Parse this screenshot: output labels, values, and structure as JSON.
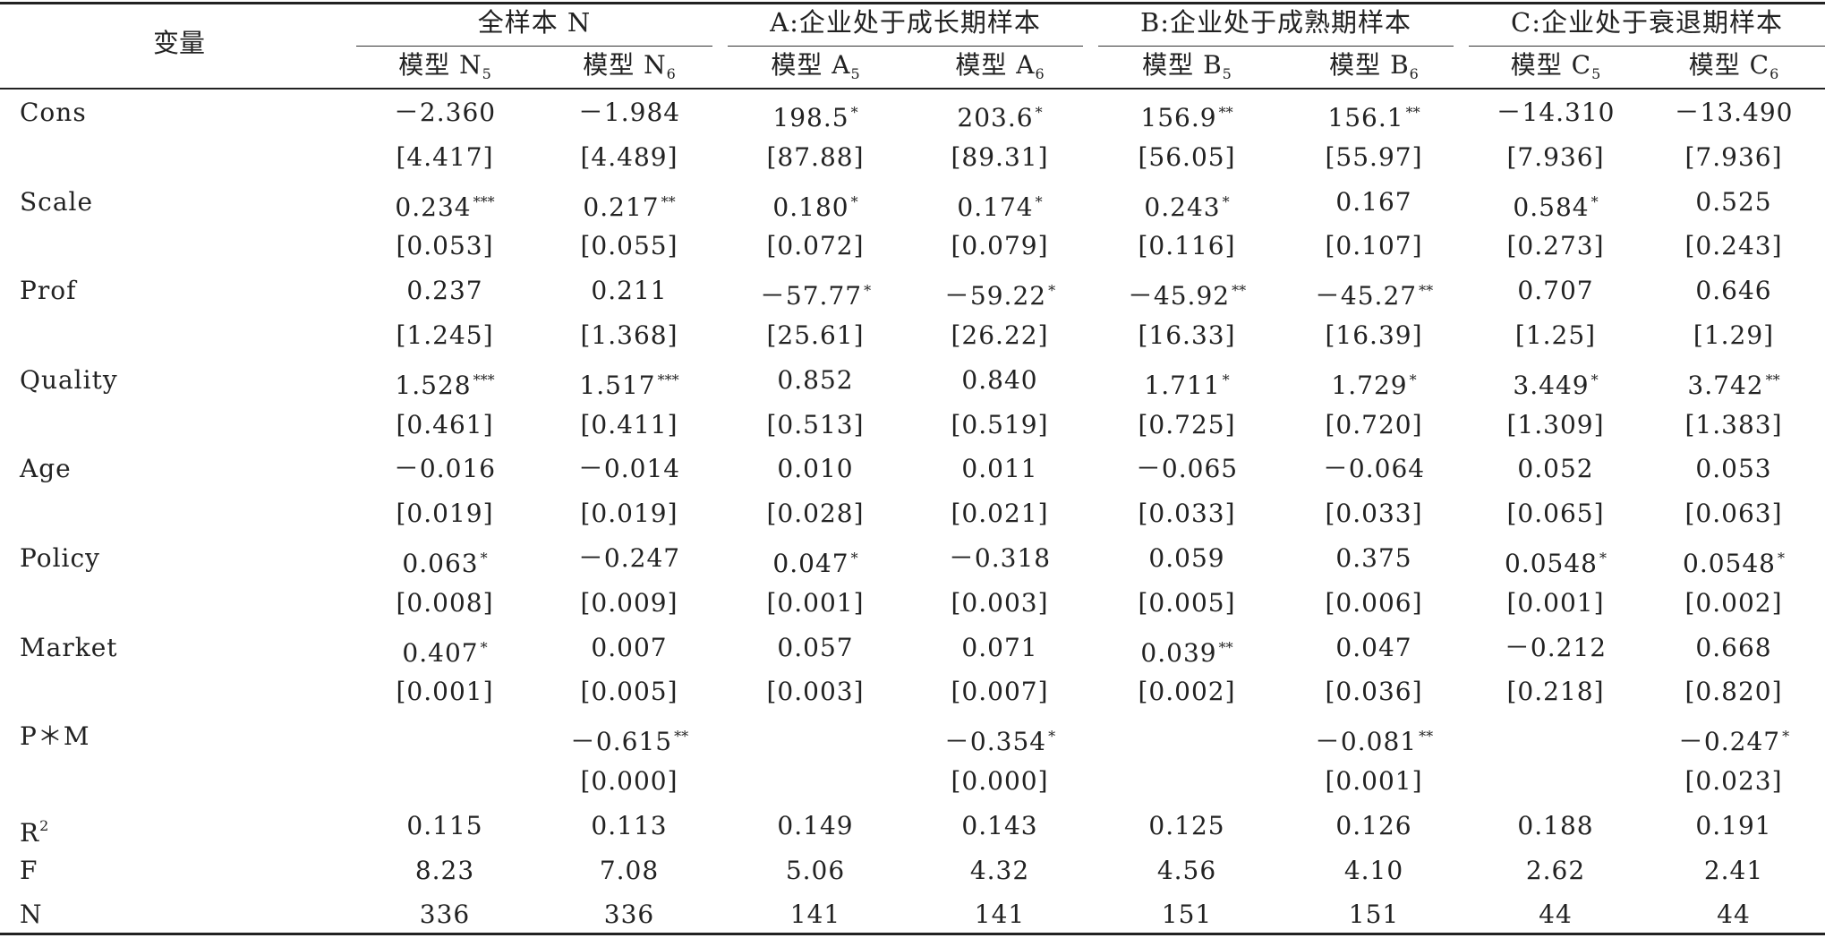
{
  "table": {
    "var_header": "变量",
    "groups": [
      {
        "label": "全样本 N"
      },
      {
        "label": "A:企业处于成长期样本"
      },
      {
        "label": "B:企业处于成熟期样本"
      },
      {
        "label": "C:企业处于衰退期样本"
      }
    ],
    "models": [
      {
        "base": "模型 N",
        "sub": "5"
      },
      {
        "base": "模型 N",
        "sub": "6"
      },
      {
        "base": "模型 A",
        "sub": "5"
      },
      {
        "base": "模型 A",
        "sub": "6"
      },
      {
        "base": "模型 B",
        "sub": "5"
      },
      {
        "base": "模型 B",
        "sub": "6"
      },
      {
        "base": "模型 C",
        "sub": "5"
      },
      {
        "base": "模型 C",
        "sub": "6"
      }
    ],
    "rows": [
      {
        "name": "Cons",
        "sup": "",
        "coef": [
          [
            "－2.360",
            ""
          ],
          [
            "－1.984",
            ""
          ],
          [
            "198.5",
            "*"
          ],
          [
            "203.6",
            "*"
          ],
          [
            "156.9",
            "**"
          ],
          [
            "156.1",
            "**"
          ],
          [
            "－14.310",
            ""
          ],
          [
            "－13.490",
            ""
          ]
        ],
        "se": [
          "[4.417]",
          "[4.489]",
          "[87.88]",
          "[89.31]",
          "[56.05]",
          "[55.97]",
          "[7.936]",
          "[7.936]"
        ]
      },
      {
        "name": "Scale",
        "sup": "",
        "coef": [
          [
            "0.234",
            "***"
          ],
          [
            "0.217",
            "**"
          ],
          [
            "0.180",
            "*"
          ],
          [
            "0.174",
            "*"
          ],
          [
            "0.243",
            "*"
          ],
          [
            "0.167",
            ""
          ],
          [
            "0.584",
            "*"
          ],
          [
            "0.525",
            ""
          ]
        ],
        "se": [
          "[0.053]",
          "[0.055]",
          "[0.072]",
          "[0.079]",
          "[0.116]",
          "[0.107]",
          "[0.273]",
          "[0.243]"
        ]
      },
      {
        "name": "Prof",
        "sup": "",
        "coef": [
          [
            "0.237",
            ""
          ],
          [
            "0.211",
            ""
          ],
          [
            "－57.77",
            "*"
          ],
          [
            "－59.22",
            "*"
          ],
          [
            "－45.92",
            "**"
          ],
          [
            "－45.27",
            "**"
          ],
          [
            "0.707",
            ""
          ],
          [
            "0.646",
            ""
          ]
        ],
        "se": [
          "[1.245]",
          "[1.368]",
          "[25.61]",
          "[26.22]",
          "[16.33]",
          "[16.39]",
          "[1.25]",
          "[1.29]"
        ]
      },
      {
        "name": "Quality",
        "sup": "",
        "coef": [
          [
            "1.528",
            "***"
          ],
          [
            "1.517",
            "***"
          ],
          [
            "0.852",
            ""
          ],
          [
            "0.840",
            ""
          ],
          [
            "1.711",
            "*"
          ],
          [
            "1.729",
            "*"
          ],
          [
            "3.449",
            "*"
          ],
          [
            "3.742",
            "**"
          ]
        ],
        "se": [
          "[0.461]",
          "[0.411]",
          "[0.513]",
          "[0.519]",
          "[0.725]",
          "[0.720]",
          "[1.309]",
          "[1.383]"
        ]
      },
      {
        "name": "Age",
        "sup": "",
        "coef": [
          [
            "－0.016",
            ""
          ],
          [
            "－0.014",
            ""
          ],
          [
            "0.010",
            ""
          ],
          [
            "0.011",
            ""
          ],
          [
            "－0.065",
            ""
          ],
          [
            "－0.064",
            ""
          ],
          [
            "0.052",
            ""
          ],
          [
            "0.053",
            ""
          ]
        ],
        "se": [
          "[0.019]",
          "[0.019]",
          "[0.028]",
          "[0.021]",
          "[0.033]",
          "[0.033]",
          "[0.065]",
          "[0.063]"
        ]
      },
      {
        "name": "Policy",
        "sup": "",
        "coef": [
          [
            "0.063",
            "*"
          ],
          [
            "－0.247",
            ""
          ],
          [
            "0.047",
            "*"
          ],
          [
            "－0.318",
            ""
          ],
          [
            "0.059",
            ""
          ],
          [
            "0.375",
            ""
          ],
          [
            "0.0548",
            "*"
          ],
          [
            "0.0548",
            "*"
          ]
        ],
        "se": [
          "[0.008]",
          "[0.009]",
          "[0.001]",
          "[0.003]",
          "[0.005]",
          "[0.006]",
          "[0.001]",
          "[0.002]"
        ]
      },
      {
        "name": "Market",
        "sup": "",
        "coef": [
          [
            "0.407",
            "*"
          ],
          [
            "0.007",
            ""
          ],
          [
            "0.057",
            ""
          ],
          [
            "0.071",
            ""
          ],
          [
            "0.039",
            "**"
          ],
          [
            "0.047",
            ""
          ],
          [
            "－0.212",
            ""
          ],
          [
            "0.668",
            ""
          ]
        ],
        "se": [
          "[0.001]",
          "[0.005]",
          "[0.003]",
          "[0.007]",
          "[0.002]",
          "[0.036]",
          "[0.218]",
          "[0.820]"
        ]
      },
      {
        "name": "P＊M",
        "sup": "",
        "coef": [
          [
            "",
            ""
          ],
          [
            "－0.615",
            "**"
          ],
          [
            "",
            ""
          ],
          [
            "－0.354",
            "*"
          ],
          [
            "",
            ""
          ],
          [
            "－0.081",
            "**"
          ],
          [
            "",
            ""
          ],
          [
            "－0.247",
            "*"
          ]
        ],
        "se": [
          "",
          "[0.000]",
          "",
          "[0.000]",
          "",
          "[0.001]",
          "",
          "[0.023]"
        ]
      },
      {
        "name": "R",
        "sup": "2",
        "coef": [
          [
            "0.115",
            ""
          ],
          [
            "0.113",
            ""
          ],
          [
            "0.149",
            ""
          ],
          [
            "0.143",
            ""
          ],
          [
            "0.125",
            ""
          ],
          [
            "0.126",
            ""
          ],
          [
            "0.188",
            ""
          ],
          [
            "0.191",
            ""
          ]
        ],
        "se": null
      },
      {
        "name": "F",
        "sup": "",
        "coef": [
          [
            "8.23",
            ""
          ],
          [
            "7.08",
            ""
          ],
          [
            "5.06",
            ""
          ],
          [
            "4.32",
            ""
          ],
          [
            "4.56",
            ""
          ],
          [
            "4.10",
            ""
          ],
          [
            "2.62",
            ""
          ],
          [
            "2.41",
            ""
          ]
        ],
        "se": null
      },
      {
        "name": "N",
        "sup": "",
        "coef": [
          [
            "336",
            ""
          ],
          [
            "336",
            ""
          ],
          [
            "141",
            ""
          ],
          [
            "141",
            ""
          ],
          [
            "151",
            ""
          ],
          [
            "151",
            ""
          ],
          [
            "44",
            ""
          ],
          [
            "44",
            ""
          ]
        ],
        "se": null
      }
    ]
  }
}
